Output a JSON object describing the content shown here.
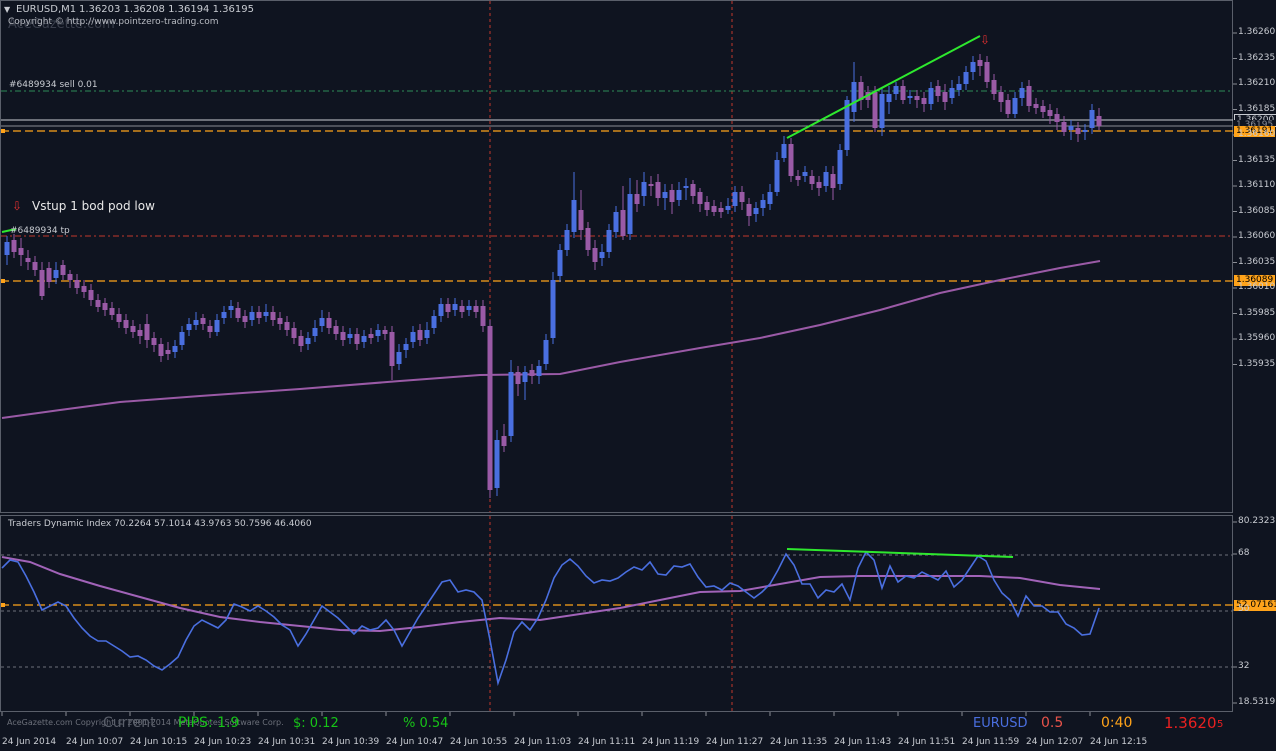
{
  "window": {
    "symbol_tf": "EURUSD,M1",
    "ohlc": "1.36203 1.36208 1.36194 1.36195",
    "copyright": "Copyright © http://www.pointzero-trading.com",
    "watermark": "AceGazette.com"
  },
  "main_chart": {
    "order_sell_label": "#6489934 sell 0.01",
    "order_tp_label": "#6489934 tp",
    "signal_label": "Vstup 1 bod pod low",
    "price_ticks": [
      "1.36260",
      "1.36235",
      "1.36210",
      "1.36185",
      "1.36160",
      "1.36135",
      "1.36110",
      "1.36085",
      "1.36060",
      "1.36035",
      "1.36010",
      "1.35985",
      "1.35960",
      "1.35935"
    ],
    "tags": {
      "bid": "1.36200",
      "bid2": "1.36195",
      "sell_level": "1.36191",
      "tp_level": "1.36089"
    }
  },
  "indicator": {
    "title": "Traders Dynamic Index 70.2264 57.1014 43.9763 50.7596 46.4060",
    "ticks": [
      "80.2323",
      "68",
      "50",
      "32",
      "18.5319"
    ],
    "level_tag": "52.07161"
  },
  "time_axis": [
    "24 Jun 2014",
    "24 Jun 10:07",
    "24 Jun 10:15",
    "24 Jun 10:23",
    "24 Jun 10:31",
    "24 Jun 10:39",
    "24 Jun 10:47",
    "24 Jun 10:55",
    "24 Jun 11:03",
    "24 Jun 11:11",
    "24 Jun 11:19",
    "24 Jun 11:27",
    "24 Jun 11:35",
    "24 Jun 11:43",
    "24 Jun 11:51",
    "24 Jun 11:59",
    "24 Jun 12:07",
    "24 Jun 12:15"
  ],
  "footer": {
    "current_label": "Current",
    "pips_label": "PIPS: 1.9",
    "dollar_label": "$: 0.12",
    "percent_label": "% 0.54",
    "symbol": "EURUSD",
    "spread": "0.5",
    "timer": "0:40",
    "price_big": "1.3620",
    "price_small": "5",
    "footer_copyright": "AceGazette.com Copyright © 2001-2014 MetaQuotes Software Corp."
  },
  "colors": {
    "background": "#0f1420",
    "bull": "#4a6fe0",
    "bear": "#9a5aa6",
    "ma": "#9a5aa6",
    "trendline": "#2ee82e",
    "level": "#ffa31a",
    "rsi_line": "#4a6fe0",
    "signal_line": "#a163b8"
  }
}
